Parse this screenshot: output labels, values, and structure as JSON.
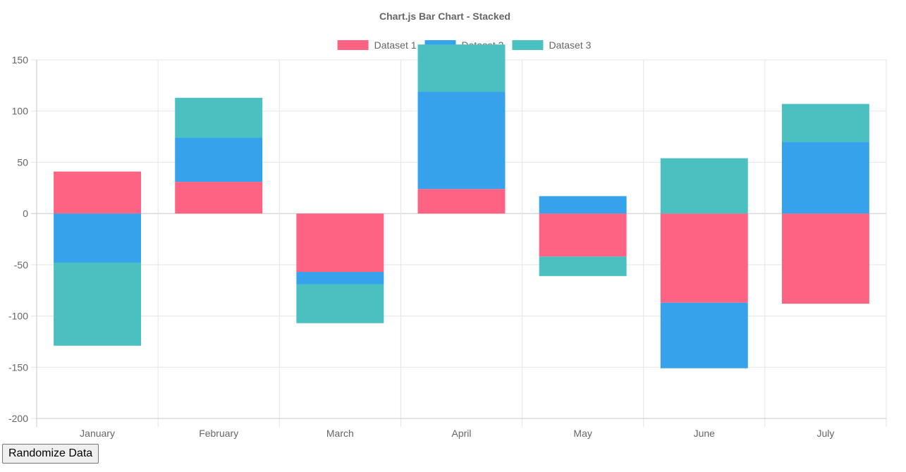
{
  "chart_data": {
    "type": "bar",
    "stacked": true,
    "title": "Chart.js Bar Chart - Stacked",
    "categories": [
      "January",
      "February",
      "March",
      "April",
      "May",
      "June",
      "July"
    ],
    "series": [
      {
        "name": "Dataset 1",
        "color": "#ff6384",
        "values": [
          41,
          31,
          -57,
          24,
          -42,
          -87,
          -88
        ]
      },
      {
        "name": "Dataset 2",
        "color": "#36a2eb",
        "values": [
          -48,
          43,
          -12,
          95,
          17,
          -64,
          70
        ]
      },
      {
        "name": "Dataset 3",
        "color": "#4bc0c0",
        "values": [
          -81,
          39,
          -38,
          46,
          -19,
          54,
          37
        ]
      }
    ],
    "ylim": [
      -200,
      150
    ],
    "yticks": [
      150,
      100,
      50,
      0,
      -50,
      -100,
      -150,
      -200
    ],
    "grid": true,
    "legend_position": "top"
  },
  "controls": {
    "randomize_label": "Randomize Data"
  }
}
